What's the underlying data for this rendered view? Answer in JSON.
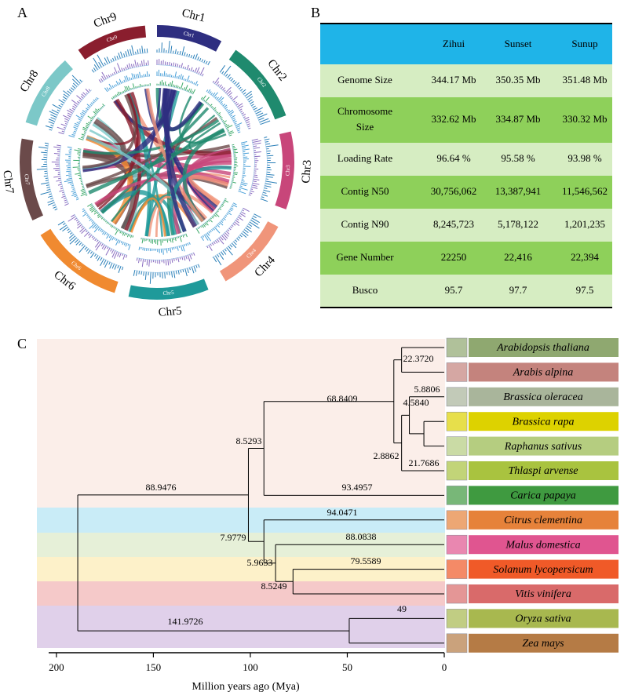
{
  "panel_a": {
    "label": "A",
    "chromosomes": [
      {
        "name": "Chr1",
        "color": "#2e2e80",
        "start": 0,
        "end": 28
      },
      {
        "name": "Chr2",
        "color": "#1f8a6e",
        "start": 35,
        "end": 70
      },
      {
        "name": "Chr3",
        "color": "#c8467a",
        "start": 77,
        "end": 110
      },
      {
        "name": "Chr4",
        "color": "#f0957a",
        "start": 118,
        "end": 150
      },
      {
        "name": "Chr5",
        "color": "#1f9a9a",
        "start": 158,
        "end": 192
      },
      {
        "name": "Chr6",
        "color": "#f08a30",
        "start": 198,
        "end": 238
      },
      {
        "name": "Chr7",
        "color": "#6b4a4a",
        "start": 245,
        "end": 280
      },
      {
        "name": "Chr8",
        "color": "#7cc8c8",
        "start": 287,
        "end": 318
      },
      {
        "name": "Chr9",
        "color": "#8a1e2e",
        "start": 325,
        "end": 355
      }
    ]
  },
  "panel_b": {
    "label": "B",
    "columns": [
      "Zihui",
      "Sunset",
      "Sunup"
    ],
    "rows": [
      {
        "label": [
          "Genome Size"
        ],
        "cells": [
          "344.17 Mb",
          "350.35 Mb",
          "351.48 Mb"
        ]
      },
      {
        "label": [
          "Chromosome",
          "Size"
        ],
        "cells": [
          "332.62 Mb",
          "334.87 Mb",
          "330.32 Mb"
        ]
      },
      {
        "label": [
          "Loading Rate"
        ],
        "cells": [
          "96.64 %",
          "95.58 %",
          "93.98 %"
        ]
      },
      {
        "label": [
          "Contig N50"
        ],
        "cells": [
          "30,756,062",
          "13,387,941",
          "11,546,562"
        ]
      },
      {
        "label": [
          "Contig N90"
        ],
        "cells": [
          "8,245,723",
          "5,178,122",
          "1,201,235"
        ]
      },
      {
        "label": [
          "Gene Number"
        ],
        "cells": [
          "22250",
          "22,416",
          "22,394"
        ]
      },
      {
        "label": [
          "Busco"
        ],
        "cells": [
          "95.7",
          "97.7",
          "97.5"
        ]
      }
    ]
  },
  "panel_c": {
    "label": "C",
    "xlabel": "Million years ago (Mya)",
    "xlim": [
      204,
      0
    ],
    "xticks": [
      200,
      150,
      100,
      50,
      0
    ],
    "species": [
      {
        "name": "Arabidopsis thaliana",
        "color": "#8fa870"
      },
      {
        "name": "Arabis alpina",
        "color": "#c4837d"
      },
      {
        "name": "Brassica oleracea",
        "color": "#a9b59b"
      },
      {
        "name": "Brassica rapa",
        "color": "#ddd200"
      },
      {
        "name": "Raphanus sativus",
        "color": "#b5cd80"
      },
      {
        "name": "Thlaspi arvense",
        "color": "#a9c33f"
      },
      {
        "name": "Carica papaya",
        "color": "#3f9a40"
      },
      {
        "name": "Citrus clementina",
        "color": "#e6823a"
      },
      {
        "name": "Malus domestica",
        "color": "#e05590"
      },
      {
        "name": "Solanum lycopersicum",
        "color": "#f05a28"
      },
      {
        "name": "Vitis vinifera",
        "color": "#d96a6a"
      },
      {
        "name": "Oryza sativa",
        "color": "#a8b84f"
      },
      {
        "name": "Zea mays",
        "color": "#b57b45"
      }
    ],
    "tree": {
      "age": 189,
      "children": [
        {
          "age": 101,
          "children": [
            {
              "age": 93,
              "children": [
                {
                  "age": 26,
                  "children": [
                    {
                      "age": 22,
                      "children": [
                        {
                          "leaf": 0
                        },
                        {
                          "leaf": 1
                        }
                      ]
                    },
                    {
                      "age": 22,
                      "children": [
                        {
                          "age": 18,
                          "children": [
                            {
                              "leaf": 2
                            },
                            {
                              "age": 10.5,
                              "children": [
                                {
                                  "leaf": 3
                                },
                                {
                                  "leaf": 4
                                }
                              ]
                            }
                          ]
                        },
                        {
                          "leaf": 5
                        }
                      ]
                    }
                  ]
                },
                {
                  "leaf": 6
                }
              ]
            },
            {
              "age": 93,
              "children": [
                {
                  "leaf": 7
                },
                {
                  "age": 87,
                  "children": [
                    {
                      "leaf": 8
                    },
                    {
                      "age": 78,
                      "children": [
                        {
                          "leaf": 9
                        },
                        {
                          "leaf": 10
                        }
                      ]
                    }
                  ]
                }
              ]
            }
          ]
        },
        {
          "age": 49,
          "children": [
            {
              "leaf": 11
            },
            {
              "leaf": 12
            }
          ]
        }
      ]
    },
    "node_labels": [
      "22.3720",
      "68.8409",
      "5.8806",
      "4.5840",
      "8.5293",
      "2.8862",
      "21.7686",
      "88.9476",
      "93.4957",
      "94.0471",
      "7.9779",
      "88.0838",
      "5.9633",
      "79.5589",
      "8.5249",
      "141.9726",
      "49"
    ]
  }
}
